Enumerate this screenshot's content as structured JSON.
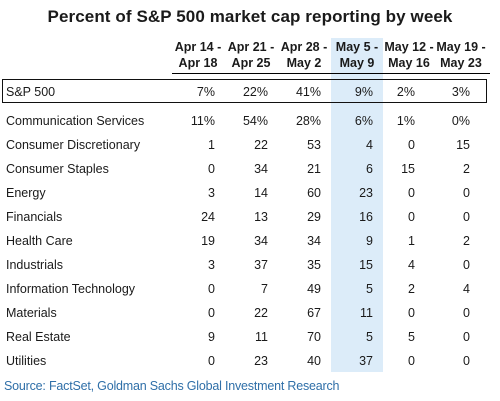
{
  "chart_data": {
    "type": "table",
    "title": "Percent of S&P 500 market cap reporting by week",
    "columns": [
      {
        "line1": "Apr 14 -",
        "line2": "Apr 18"
      },
      {
        "line1": "Apr 21 -",
        "line2": "Apr 25"
      },
      {
        "line1": "Apr 28 -",
        "line2": "May 2"
      },
      {
        "line1": "May 5 -",
        "line2": "May 9"
      },
      {
        "line1": "May 12 -",
        "line2": "May 16"
      },
      {
        "line1": "May 19 -",
        "line2": "May 23"
      }
    ],
    "highlighted_column": 3,
    "rows": [
      {
        "label": "S&P 500",
        "values": [
          "7%",
          "22%",
          "41%",
          "9%",
          "2%",
          "3%"
        ]
      },
      {
        "label": "Communication Services",
        "values": [
          "11%",
          "54%",
          "28%",
          "6%",
          "1%",
          "0%"
        ]
      },
      {
        "label": "Consumer Discretionary",
        "values": [
          "1",
          "22",
          "53",
          "4",
          "0",
          "15"
        ]
      },
      {
        "label": "Consumer Staples",
        "values": [
          "0",
          "34",
          "21",
          "6",
          "15",
          "2"
        ]
      },
      {
        "label": "Energy",
        "values": [
          "3",
          "14",
          "60",
          "23",
          "0",
          "0"
        ]
      },
      {
        "label": "Financials",
        "values": [
          "24",
          "13",
          "29",
          "16",
          "0",
          "0"
        ]
      },
      {
        "label": "Health Care",
        "values": [
          "19",
          "34",
          "34",
          "9",
          "1",
          "2"
        ]
      },
      {
        "label": "Industrials",
        "values": [
          "3",
          "37",
          "35",
          "15",
          "4",
          "0"
        ]
      },
      {
        "label": "Information Technology",
        "values": [
          "0",
          "7",
          "49",
          "5",
          "2",
          "4"
        ]
      },
      {
        "label": "Materials",
        "values": [
          "0",
          "22",
          "67",
          "11",
          "0",
          "0"
        ]
      },
      {
        "label": "Real Estate",
        "values": [
          "9",
          "11",
          "70",
          "5",
          "5",
          "0"
        ]
      },
      {
        "label": "Utilities",
        "values": [
          "0",
          "23",
          "40",
          "37",
          "0",
          "0"
        ]
      }
    ],
    "highlight_color": "#dcecf9",
    "source_color": "#2f6fa8"
  },
  "source": "Source: FactSet, Goldman Sachs Global Investment Research"
}
